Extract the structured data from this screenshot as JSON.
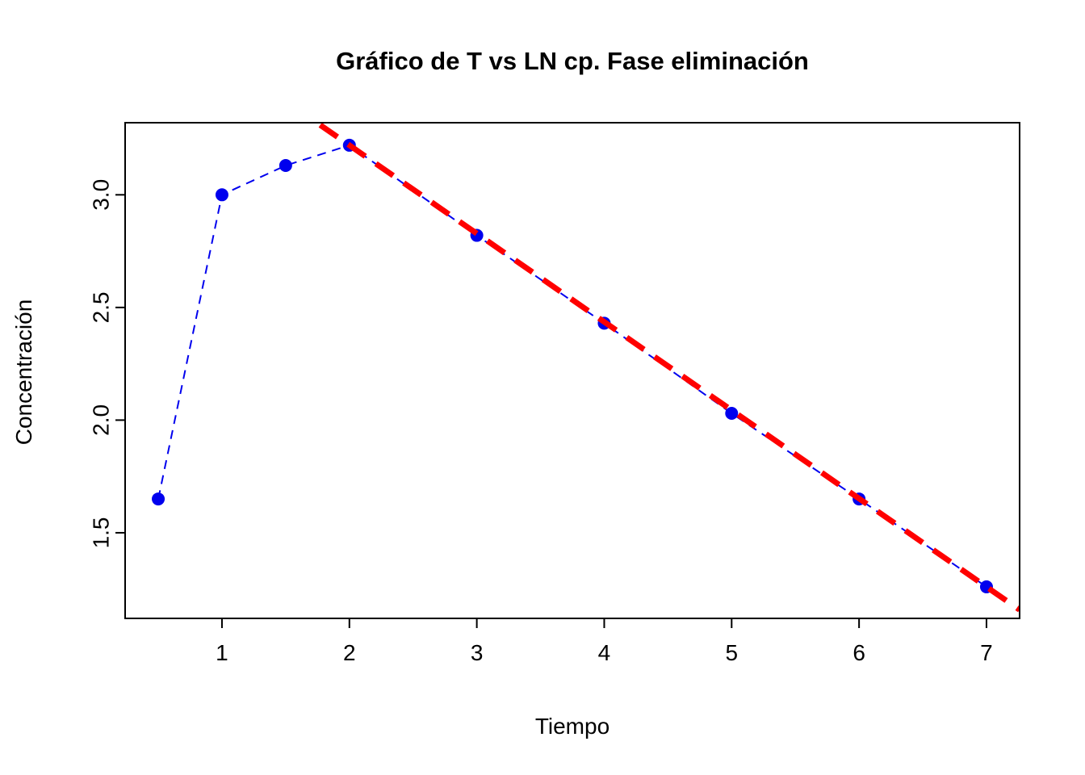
{
  "chart_data": {
    "type": "line",
    "title": "Gráfico de T vs LN cp. Fase eliminación",
    "xlabel": "Tiempo",
    "ylabel": "Concentración",
    "x": [
      0.5,
      1,
      1.5,
      2,
      3,
      4,
      5,
      6,
      7
    ],
    "y": [
      1.65,
      3.0,
      3.13,
      3.22,
      2.82,
      2.43,
      2.03,
      1.65,
      1.26
    ],
    "xlim": [
      0.24,
      7.26
    ],
    "ylim": [
      1.12,
      3.32
    ],
    "xticks": [
      1,
      2,
      3,
      4,
      5,
      6,
      7
    ],
    "xtick_labels": [
      "1",
      "2",
      "3",
      "4",
      "5",
      "6",
      "7"
    ],
    "yticks": [
      1.5,
      2.0,
      2.5,
      3.0
    ],
    "ytick_labels": [
      "1.5",
      "2.0",
      "2.5",
      "3.0"
    ],
    "grid": false,
    "legend": null,
    "series": [
      {
        "name": "observed-concentration",
        "style": "dashed-line-with-points",
        "color": "#0000EE",
        "point_color": "#0000EE"
      },
      {
        "name": "elimination-phase-fit",
        "style": "thick-dashed-line",
        "color": "#FF0000",
        "slope": -0.392,
        "intercept": 4.004
      }
    ]
  }
}
